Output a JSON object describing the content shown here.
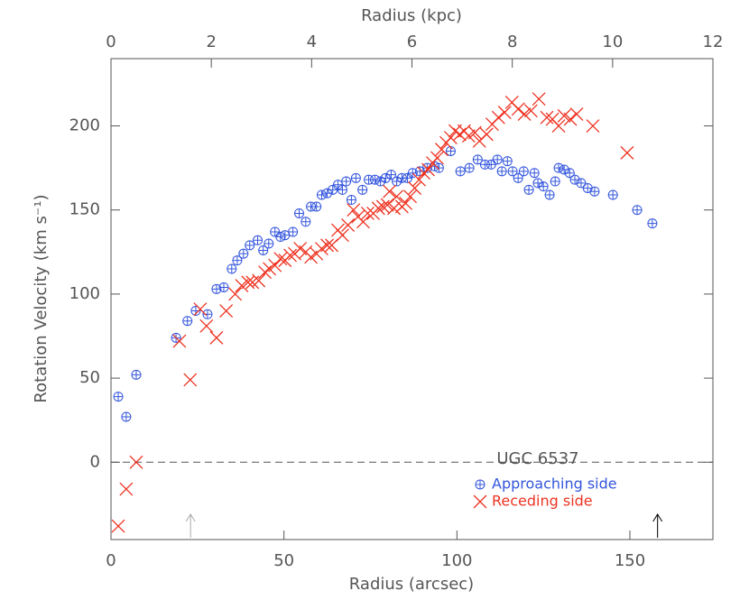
{
  "chart_data": {
    "type": "scatter",
    "xlabel": "Radius (arcsec)",
    "x2label": "Radius (kpc)",
    "ylabel": "Rotation Velocity (km s⁻¹)",
    "xlim": [
      0,
      174
    ],
    "xticks": [
      0,
      50,
      100,
      150
    ],
    "x2lim": [
      0,
      12
    ],
    "x2ticks": [
      0,
      2,
      4,
      6,
      8,
      10,
      12
    ],
    "ylim": [
      -46,
      240
    ],
    "yticks": [
      0,
      50,
      100,
      150,
      200
    ],
    "annotation": "UGC 6537",
    "hline": 0,
    "arrows": [
      {
        "x": 23,
        "color": "#aaaaaa"
      },
      {
        "x": 158,
        "color": "#000000"
      }
    ],
    "series": [
      {
        "name": "Approaching side",
        "color": "#3355dd",
        "marker": "circle",
        "x": [
          2.1,
          4.4,
          7.3,
          18.8,
          22.1,
          24.5,
          27.9,
          30.5,
          32.6,
          34.9,
          36.5,
          38.3,
          40.1,
          42.4,
          44.0,
          45.6,
          47.4,
          49.0,
          50.3,
          52.6,
          54.4,
          56.3,
          57.8,
          59.4,
          60.9,
          62.5,
          64.1,
          65.6,
          66.9,
          68.0,
          69.5,
          70.8,
          72.7,
          74.5,
          76.3,
          77.9,
          79.4,
          81.0,
          82.6,
          84.1,
          85.7,
          87.2,
          89.3,
          91.4,
          93.5,
          94.8,
          98.2,
          101.0,
          103.6,
          106.0,
          108.1,
          109.9,
          111.7,
          113.0,
          114.6,
          116.1,
          117.7,
          119.3,
          120.8,
          122.4,
          123.4,
          125.0,
          126.8,
          128.4,
          129.4,
          131.0,
          132.6,
          134.1,
          135.9,
          137.8,
          139.8,
          145.1,
          152.1,
          156.5
        ],
        "values": [
          39,
          27,
          52,
          74,
          84,
          90,
          88,
          103,
          104,
          115,
          120,
          124,
          129,
          132,
          126,
          130,
          137,
          134,
          135,
          137,
          148,
          143,
          152,
          152,
          159,
          160,
          162,
          165,
          162,
          167,
          156,
          169,
          162,
          168,
          168,
          167,
          169,
          171,
          167,
          169,
          169,
          172,
          173,
          175,
          176,
          175,
          185,
          173,
          175,
          180,
          177,
          177,
          180,
          173,
          179,
          173,
          169,
          173,
          162,
          172,
          166,
          164,
          159,
          167,
          175,
          174,
          172,
          168,
          166,
          163,
          161,
          159,
          150,
          142
        ]
      },
      {
        "name": "Receding side",
        "color": "#ee3322",
        "marker": "x",
        "x": [
          2.1,
          4.4,
          7.3,
          19.8,
          22.9,
          25.8,
          27.6,
          30.5,
          33.3,
          35.9,
          37.8,
          39.6,
          40.9,
          42.7,
          44.5,
          45.8,
          47.4,
          49.0,
          50.3,
          51.8,
          53.1,
          54.7,
          56.3,
          57.8,
          59.4,
          60.9,
          62.5,
          63.8,
          65.6,
          66.9,
          68.5,
          70.1,
          71.4,
          72.9,
          74.2,
          75.8,
          77.3,
          78.6,
          79.9,
          80.5,
          81.8,
          82.6,
          84.1,
          85.2,
          86.5,
          87.8,
          89.1,
          90.4,
          91.7,
          93.0,
          94.3,
          95.6,
          96.9,
          98.2,
          99.5,
          100.8,
          102.1,
          103.4,
          105.2,
          106.5,
          108.6,
          110.2,
          112.0,
          113.8,
          115.9,
          117.7,
          119.5,
          121.4,
          123.7,
          126.0,
          127.6,
          129.4,
          131.0,
          132.8,
          134.6,
          139.3,
          149.2
        ],
        "values": [
          -38,
          -16,
          0,
          72,
          49,
          91,
          81,
          74,
          90,
          100,
          105,
          107,
          107,
          108,
          113,
          115,
          117,
          121,
          120,
          123,
          124,
          127,
          125,
          122,
          124,
          127,
          129,
          129,
          138,
          135,
          141,
          150,
          146,
          143,
          148,
          148,
          151,
          152,
          153,
          161,
          151,
          158,
          152,
          154,
          158,
          163,
          168,
          172,
          174,
          178,
          181,
          186,
          190,
          193,
          197,
          195,
          197,
          194,
          196,
          191,
          195,
          201,
          205,
          208,
          214,
          210,
          207,
          209,
          216,
          205,
          204,
          200,
          206,
          204,
          207,
          200,
          184
        ]
      }
    ]
  }
}
